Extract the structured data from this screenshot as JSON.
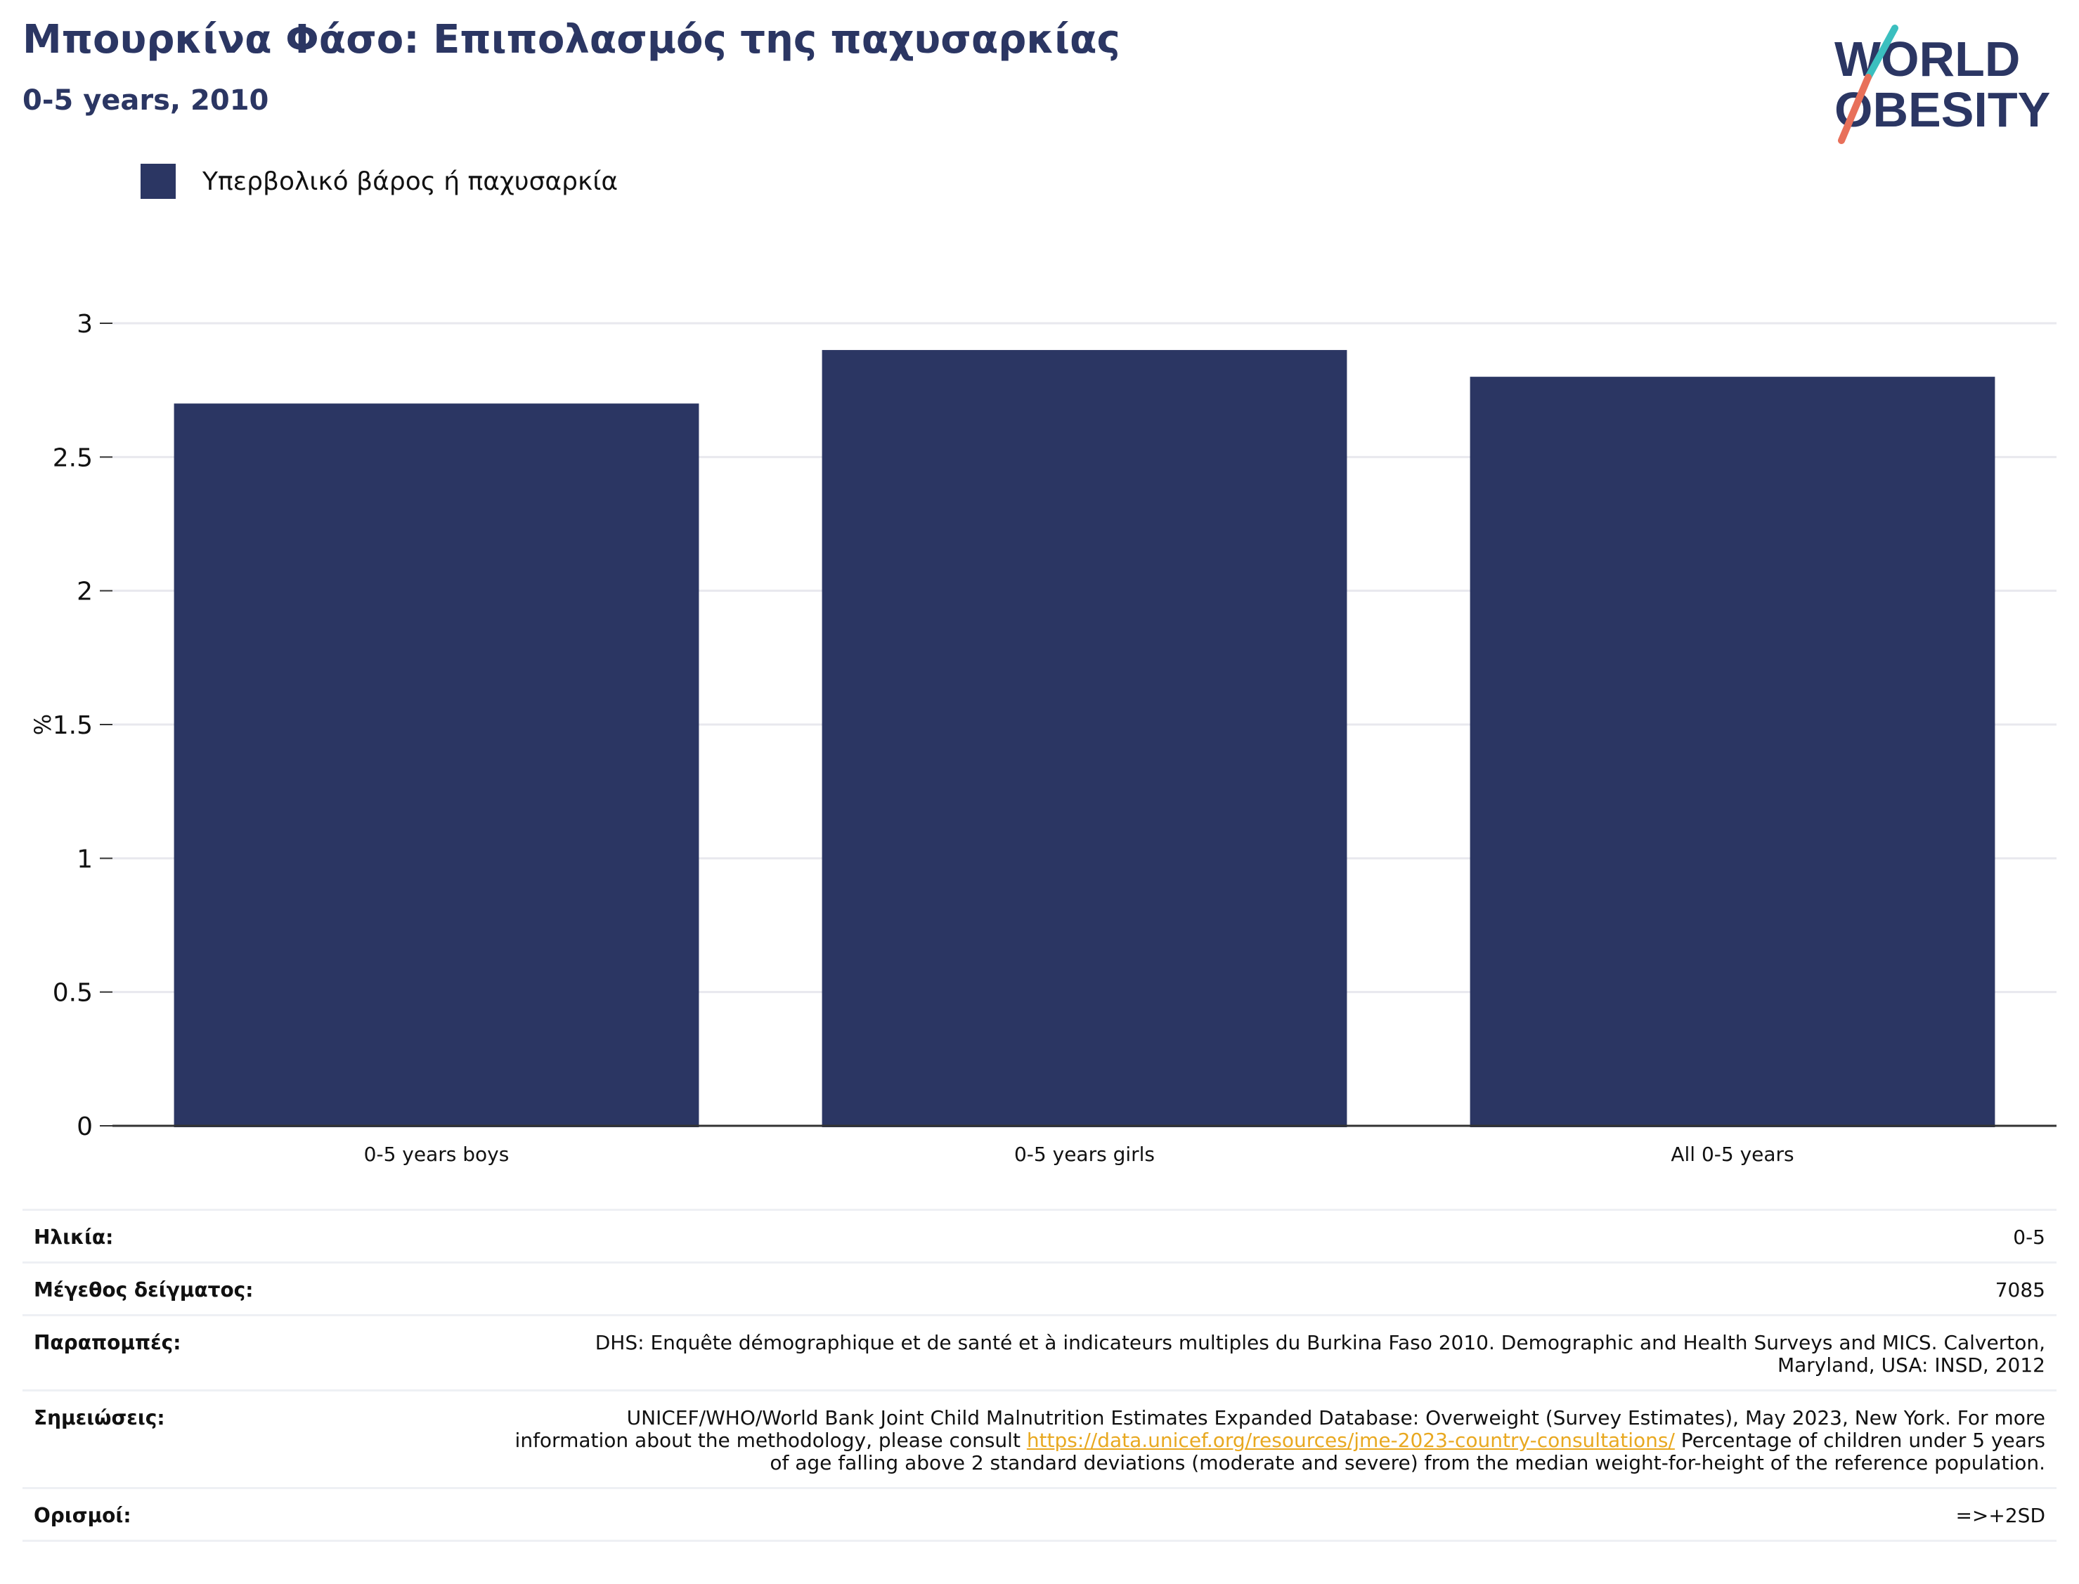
{
  "header": {
    "title": "Μπουρκίνα Φάσο: Επιπολασμός της παχυσαρκίας",
    "subtitle": "0-5 years, 2010"
  },
  "logo": {
    "line1": "WORLD",
    "line2": "OBESITY",
    "colors": {
      "text": "#2b3663",
      "slash_top": "#3bbfbf",
      "slash_bottom": "#e8705a"
    }
  },
  "chart_data": {
    "type": "bar",
    "categories": [
      "0-5 years boys",
      "0-5 years girls",
      "All 0-5 years"
    ],
    "series": [
      {
        "name": "Υπερβολικό βάρος ή παχυσαρκία",
        "values": [
          2.7,
          2.9,
          2.8
        ],
        "color": "#2b3663"
      }
    ],
    "ylabel": "%",
    "ylim": [
      0,
      3
    ],
    "yticks": [
      0,
      0.5,
      1,
      1.5,
      2,
      2.5,
      3
    ],
    "ytick_labels": [
      "0",
      "0.5",
      "1",
      "1.5",
      "2",
      "2.5",
      "3"
    ],
    "grid": true,
    "legend_position": "top-left"
  },
  "info": {
    "rows": [
      {
        "label": "Ηλικία:",
        "value": "0-5"
      },
      {
        "label": "Μέγεθος δείγματος:",
        "value": "7085"
      },
      {
        "label": "Παραπομπές:",
        "value": "DHS: Enquête démographique et de santé et à indicateurs multiples du Burkina Faso 2010. Demographic and Health Surveys and MICS. Calverton, Maryland, USA: INSD, 2012"
      },
      {
        "label": "Σημειώσεις:",
        "value_before": "UNICEF/WHO/World Bank Joint Child Malnutrition Estimates Expanded Database: Overweight (Survey Estimates), May 2023, New York. For more information about the methodology, please consult ",
        "link": "https://data.unicef.org/resources/jme-2023-country-consultations/",
        "value_after": " Percentage of children under 5 years of age falling above 2 standard deviations (moderate and severe) from the median weight-for-height of the reference population."
      },
      {
        "label": "Ορισμοί:",
        "value": "=>+2SD"
      }
    ]
  }
}
